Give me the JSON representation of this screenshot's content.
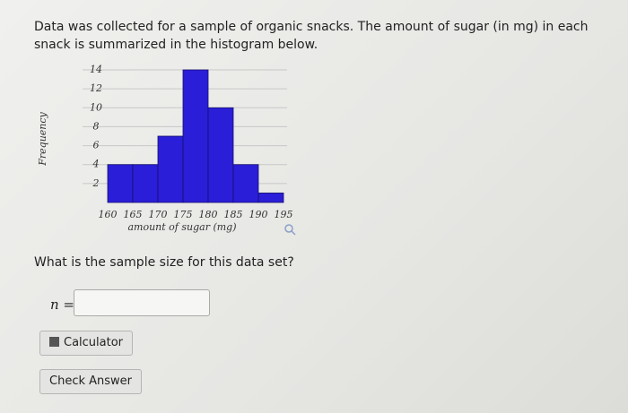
{
  "question": "Data was collected for a sample of organic snacks. The amount of sugar (in mg) in each snack is summarized in the histogram below.",
  "chart_data": {
    "type": "histogram",
    "bins": [
      160,
      165,
      170,
      175,
      180,
      185,
      190,
      195
    ],
    "values": [
      4,
      4,
      7,
      14,
      10,
      4,
      1
    ],
    "color": "#2b1ed8",
    "xlabel": "amount of sugar (mg)",
    "ylabel": "Frequency",
    "xlim": [
      160,
      195
    ],
    "xticks": [
      160,
      165,
      170,
      175,
      180,
      185,
      190,
      195
    ],
    "ylim": [
      0,
      14
    ],
    "yticks": [
      2,
      4,
      6,
      8,
      10,
      12,
      14
    ],
    "grid": true
  },
  "prompt": "What is the sample size for this data set?",
  "answer_label": "n =",
  "buttons": {
    "calculator": "Calculator",
    "check": "Check Answer"
  }
}
